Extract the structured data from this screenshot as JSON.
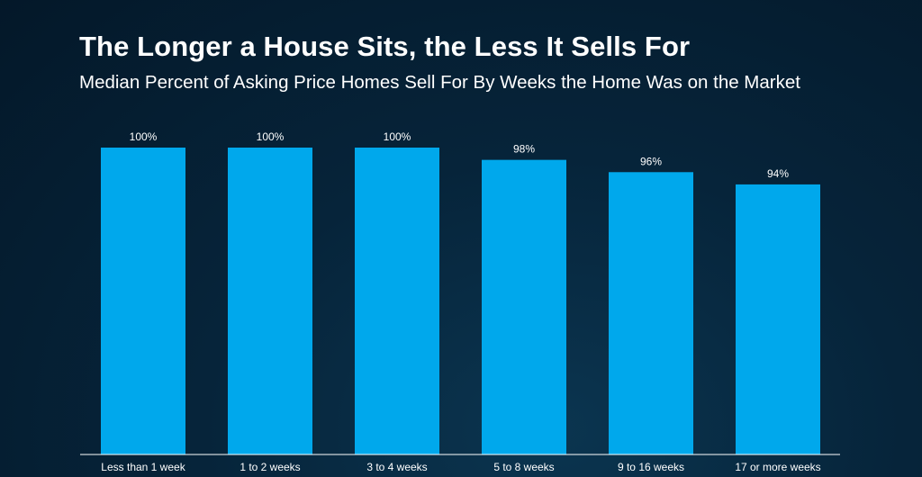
{
  "colors": {
    "bar": "#00a8ec",
    "axis": "#ffffff",
    "text": "#ffffff"
  },
  "chart_data": {
    "type": "bar",
    "title": "The Longer a House Sits, the Less It Sells For",
    "subtitle": "Median Percent of Asking Price Homes Sell For By Weeks the Home Was on the Market",
    "categories": [
      "Less than 1 week",
      "1 to 2 weeks",
      "3 to 4 weeks",
      "5 to 8 weeks",
      "9 to 16 weeks",
      "17 or more weeks"
    ],
    "values": [
      100,
      100,
      100,
      98,
      96,
      94
    ],
    "data_labels": [
      "100%",
      "100%",
      "100%",
      "98%",
      "96%",
      "94%"
    ],
    "xlabel": "",
    "ylabel": "",
    "ylim": [
      50,
      100
    ],
    "grid": false,
    "legend": "none"
  }
}
